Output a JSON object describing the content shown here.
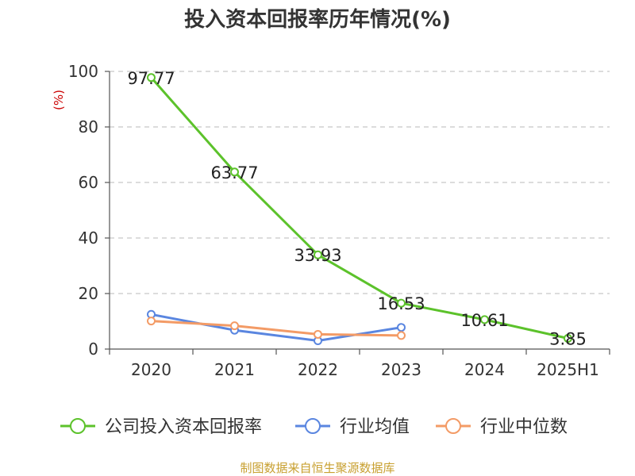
{
  "chart_data": {
    "type": "line",
    "title": "投入资本回报率历年情况(%)",
    "ylabel": "(%)",
    "xlabel": "",
    "categories": [
      "2020",
      "2021",
      "2022",
      "2023",
      "2024",
      "2025H1"
    ],
    "ylim": [
      0,
      100
    ],
    "yticks": [
      0,
      20,
      40,
      60,
      80,
      100
    ],
    "grid": true,
    "legend_position": "bottom",
    "series": [
      {
        "name": "公司投入资本回报率",
        "color": "#5cc22b",
        "values": [
          97.77,
          63.77,
          33.93,
          16.53,
          10.61,
          3.85
        ],
        "labels": [
          "97.77",
          "63.77",
          "33.93",
          "16.53",
          "10.61",
          "3.85"
        ]
      },
      {
        "name": "行业均值",
        "color": "#5a86e0",
        "values": [
          12.5,
          6.8,
          3.0,
          7.8,
          null,
          null
        ]
      },
      {
        "name": "行业中位数",
        "color": "#f39b66",
        "values": [
          10.1,
          8.4,
          5.3,
          4.9,
          null,
          null
        ]
      }
    ]
  },
  "source": "制图数据来自恒生聚源数据库"
}
